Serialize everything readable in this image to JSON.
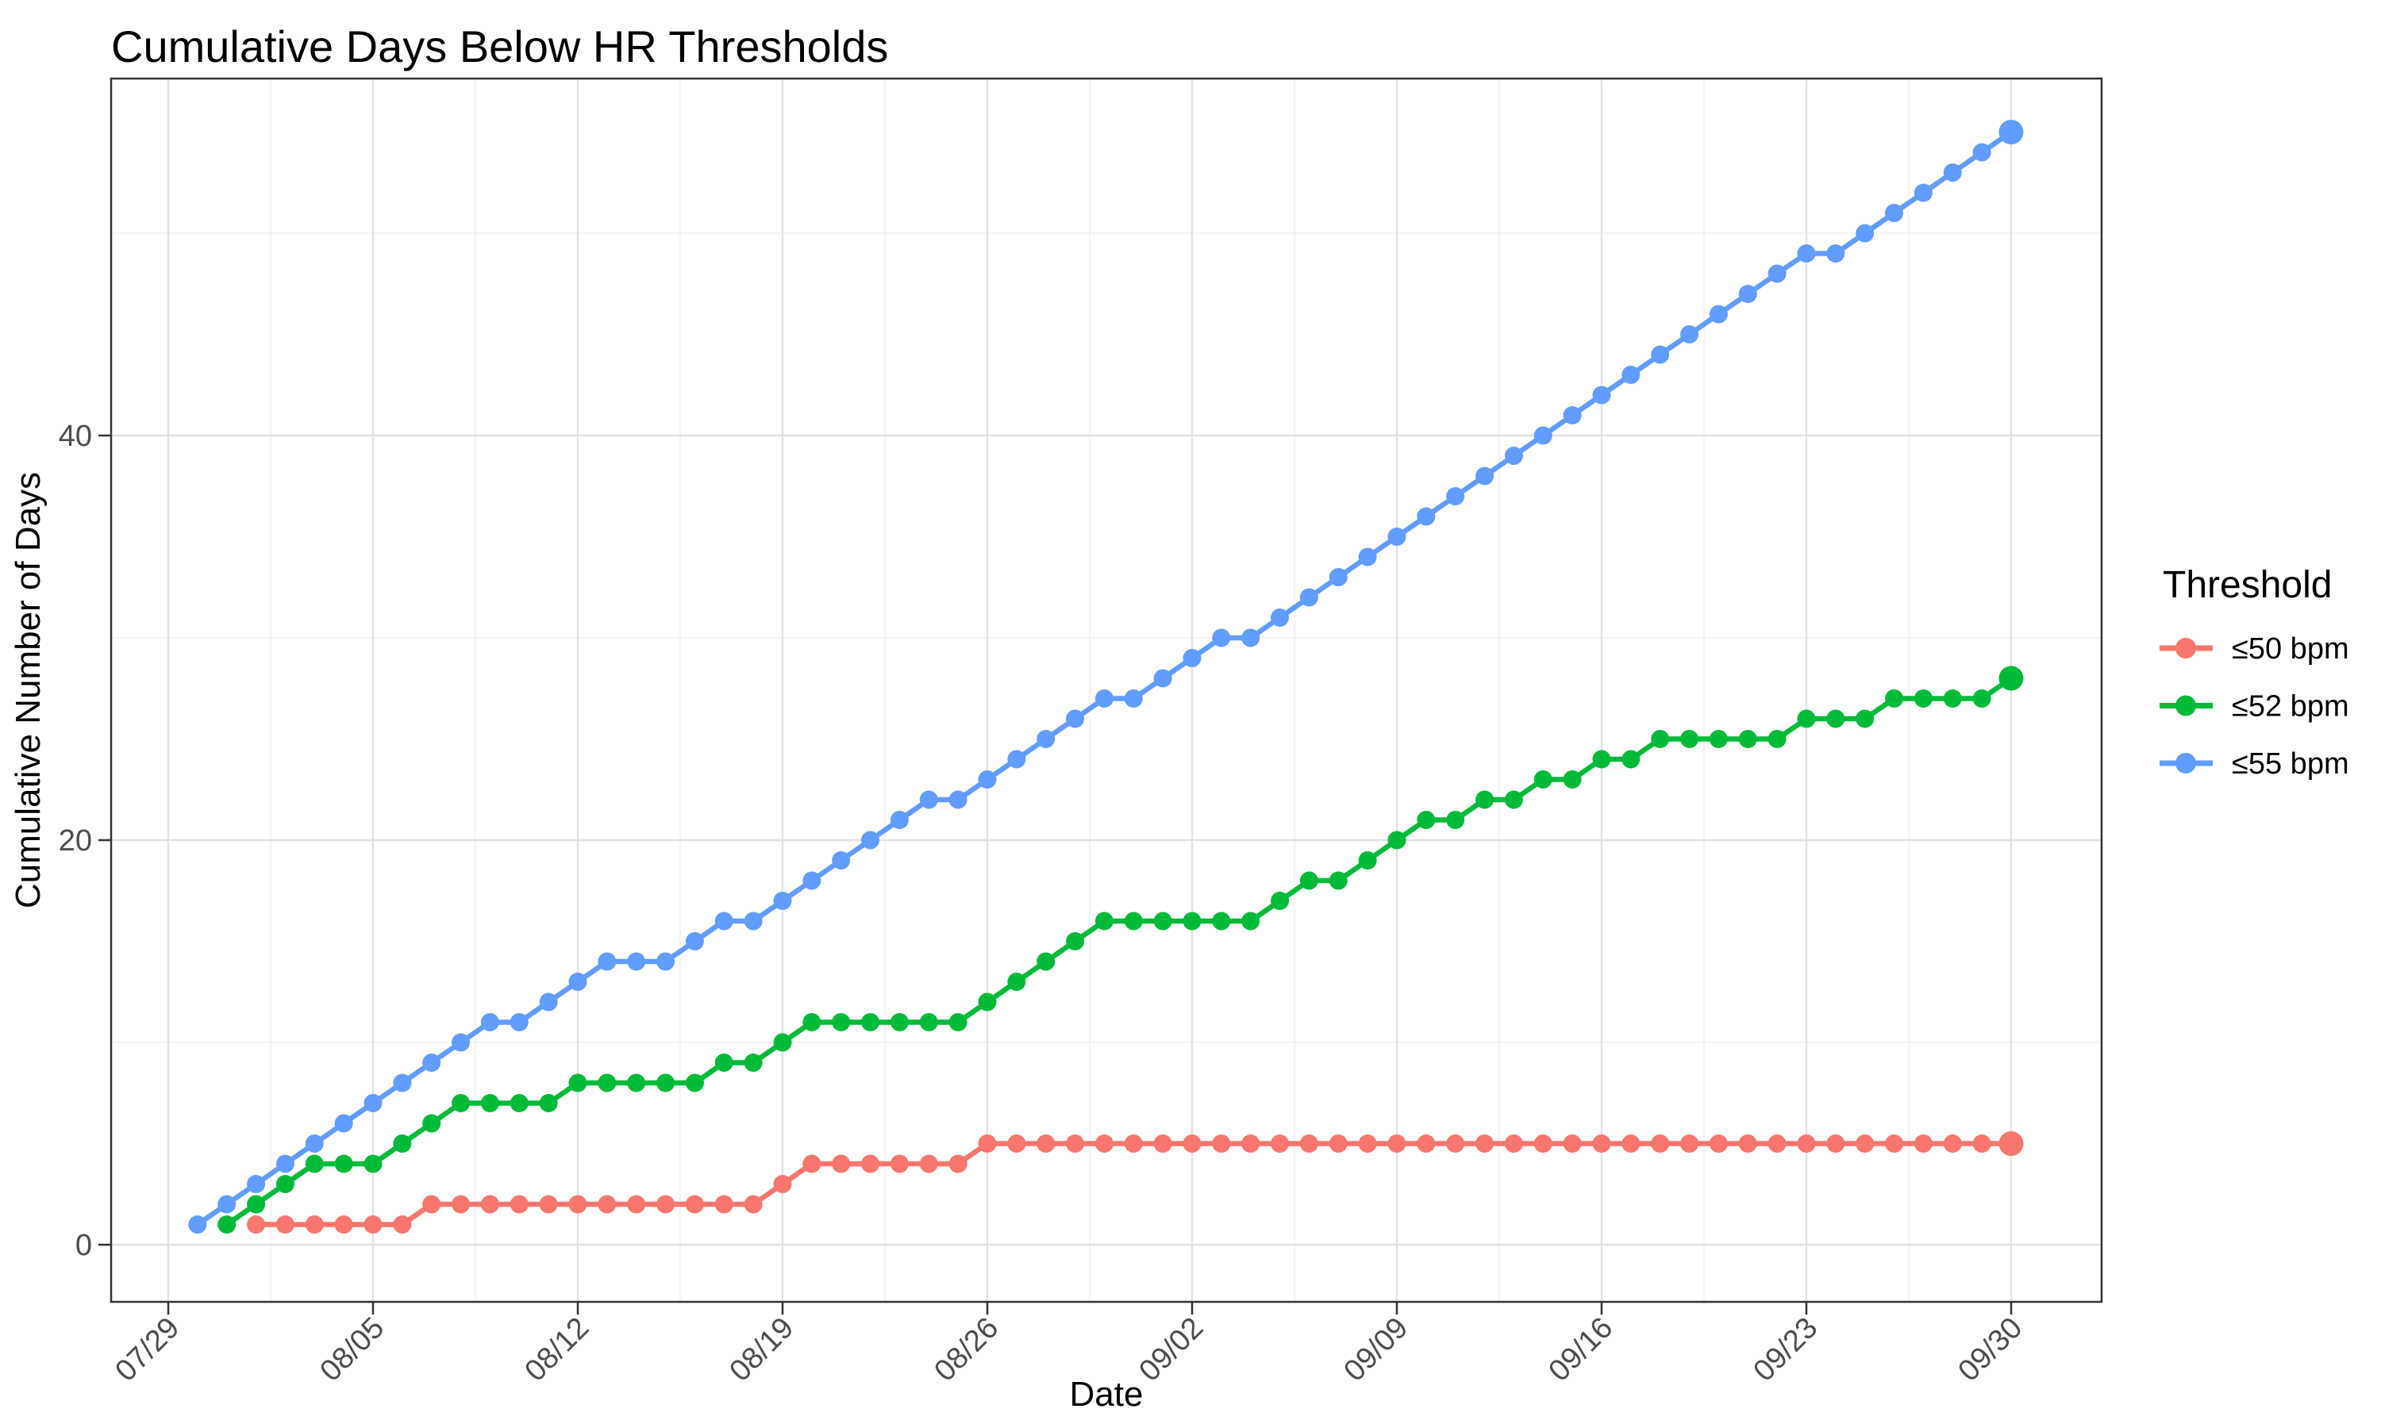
{
  "chart_data": {
    "type": "line",
    "title": "Cumulative Days Below HR Thresholds",
    "xlabel": "Date",
    "ylabel": "Cumulative Number of Days",
    "grid": "on",
    "legend_position": "right",
    "legend_title": "Threshold",
    "x_axis_days_after_0729": [
      0,
      63
    ],
    "ylim": [
      0,
      57
    ],
    "y_ticks": [
      0,
      20,
      40
    ],
    "y_minor_ticks": [
      10,
      30,
      50
    ],
    "x_ticks": [
      {
        "label": "07/29",
        "d": 0
      },
      {
        "label": "08/05",
        "d": 7
      },
      {
        "label": "08/12",
        "d": 14
      },
      {
        "label": "08/19",
        "d": 21
      },
      {
        "label": "08/26",
        "d": 28
      },
      {
        "label": "09/02",
        "d": 35
      },
      {
        "label": "09/09",
        "d": 42
      },
      {
        "label": "09/16",
        "d": 49
      },
      {
        "label": "09/23",
        "d": 56
      },
      {
        "label": "09/30",
        "d": 63
      }
    ],
    "series": [
      {
        "name": "≤50 bpm",
        "slug": "le50",
        "color": "#F8766D",
        "d0": 3,
        "dates": [
          "08/01",
          "08/02",
          "08/03",
          "08/04",
          "08/05",
          "08/06",
          "08/07",
          "08/08",
          "08/09",
          "08/10",
          "08/11",
          "08/12",
          "08/13",
          "08/14",
          "08/15",
          "08/16",
          "08/17",
          "08/18",
          "08/19",
          "08/20",
          "08/21",
          "08/22",
          "08/23",
          "08/24",
          "08/25",
          "08/26",
          "08/27",
          "08/28",
          "08/29",
          "08/30",
          "08/31",
          "09/01",
          "09/02",
          "09/03",
          "09/04",
          "09/05",
          "09/06",
          "09/07",
          "09/08",
          "09/09",
          "09/10",
          "09/11",
          "09/12",
          "09/13",
          "09/14",
          "09/15",
          "09/16",
          "09/17",
          "09/18",
          "09/19",
          "09/20",
          "09/21",
          "09/22",
          "09/23",
          "09/24",
          "09/25",
          "09/26",
          "09/27",
          "09/28",
          "09/29",
          "09/30"
        ],
        "values": [
          1,
          1,
          1,
          1,
          1,
          1,
          2,
          2,
          2,
          2,
          2,
          2,
          2,
          2,
          2,
          2,
          2,
          2,
          3,
          4,
          4,
          4,
          4,
          4,
          4,
          5,
          5,
          5,
          5,
          5,
          5,
          5,
          5,
          5,
          5,
          5,
          5,
          5,
          5,
          5,
          5,
          5,
          5,
          5,
          5,
          5,
          5,
          5,
          5,
          5,
          5,
          5,
          5,
          5,
          5,
          5,
          5,
          5,
          5,
          5,
          5
        ]
      },
      {
        "name": "≤52 bpm",
        "slug": "le52",
        "color": "#00BA38",
        "d0": 2,
        "dates": [
          "07/31",
          "08/01",
          "08/02",
          "08/03",
          "08/04",
          "08/05",
          "08/06",
          "08/07",
          "08/08",
          "08/09",
          "08/10",
          "08/11",
          "08/12",
          "08/13",
          "08/14",
          "08/15",
          "08/16",
          "08/17",
          "08/18",
          "08/19",
          "08/20",
          "08/21",
          "08/22",
          "08/23",
          "08/24",
          "08/25",
          "08/26",
          "08/27",
          "08/28",
          "08/29",
          "08/30",
          "08/31",
          "09/01",
          "09/02",
          "09/03",
          "09/04",
          "09/05",
          "09/06",
          "09/07",
          "09/08",
          "09/09",
          "09/10",
          "09/11",
          "09/12",
          "09/13",
          "09/14",
          "09/15",
          "09/16",
          "09/17",
          "09/18",
          "09/19",
          "09/20",
          "09/21",
          "09/22",
          "09/23",
          "09/24",
          "09/25",
          "09/26",
          "09/27",
          "09/28",
          "09/29",
          "09/30"
        ],
        "values": [
          1,
          2,
          3,
          4,
          4,
          4,
          5,
          6,
          7,
          7,
          7,
          7,
          8,
          8,
          8,
          8,
          8,
          9,
          9,
          10,
          11,
          11,
          11,
          11,
          11,
          11,
          12,
          13,
          14,
          15,
          16,
          16,
          16,
          16,
          16,
          16,
          17,
          18,
          18,
          19,
          20,
          21,
          21,
          22,
          22,
          23,
          23,
          24,
          24,
          25,
          25,
          25,
          25,
          25,
          26,
          26,
          26,
          27,
          27,
          27,
          27,
          28
        ]
      },
      {
        "name": "≤55 bpm",
        "slug": "le55",
        "color": "#619CFF",
        "d0": 1,
        "dates": [
          "07/30",
          "07/31",
          "08/01",
          "08/02",
          "08/03",
          "08/04",
          "08/05",
          "08/06",
          "08/07",
          "08/08",
          "08/09",
          "08/10",
          "08/11",
          "08/12",
          "08/13",
          "08/14",
          "08/15",
          "08/16",
          "08/17",
          "08/18",
          "08/19",
          "08/20",
          "08/21",
          "08/22",
          "08/23",
          "08/24",
          "08/25",
          "08/26",
          "08/27",
          "08/28",
          "08/29",
          "08/30",
          "08/31",
          "09/01",
          "09/02",
          "09/03",
          "09/04",
          "09/05",
          "09/06",
          "09/07",
          "09/08",
          "09/09",
          "09/10",
          "09/11",
          "09/12",
          "09/13",
          "09/14",
          "09/15",
          "09/16",
          "09/17",
          "09/18",
          "09/19",
          "09/20",
          "09/21",
          "09/22",
          "09/23",
          "09/24",
          "09/25",
          "09/26",
          "09/27",
          "09/28",
          "09/29",
          "09/30"
        ],
        "values": [
          1,
          2,
          3,
          4,
          5,
          6,
          7,
          8,
          9,
          10,
          11,
          11,
          12,
          13,
          14,
          14,
          14,
          15,
          16,
          16,
          17,
          18,
          19,
          20,
          21,
          22,
          22,
          23,
          24,
          25,
          26,
          27,
          27,
          28,
          29,
          30,
          30,
          31,
          32,
          33,
          34,
          35,
          36,
          37,
          38,
          39,
          40,
          41,
          42,
          43,
          44,
          45,
          46,
          47,
          48,
          49,
          49,
          50,
          51,
          52,
          53,
          54,
          55
        ]
      }
    ]
  }
}
